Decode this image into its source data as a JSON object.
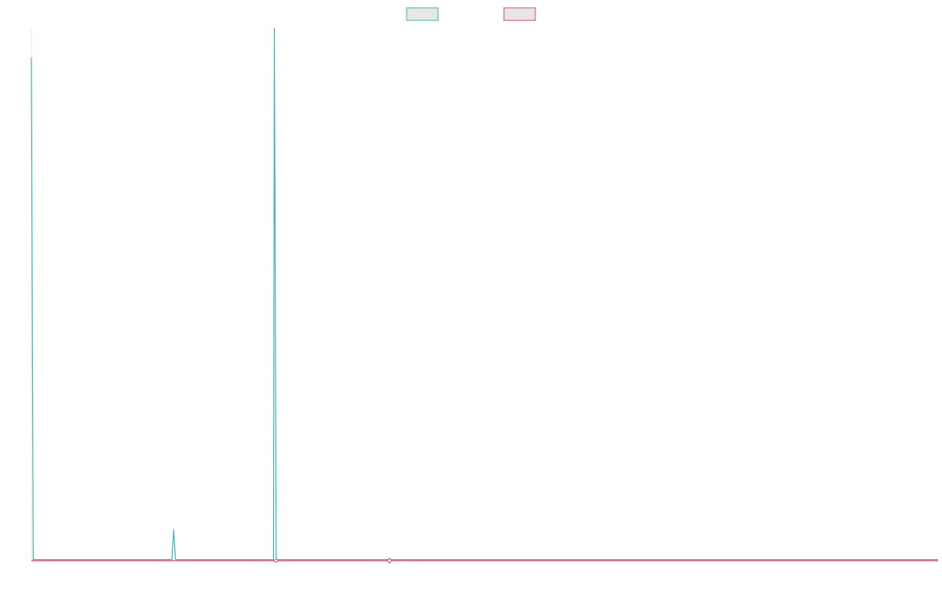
{
  "chart_data": {
    "type": "line",
    "title": "",
    "xlabel": "",
    "ylabel": "",
    "grid": false,
    "legend_position": "top-center",
    "x_range": [
      0,
      1000
    ],
    "ylim": [
      0,
      100
    ],
    "series": [
      {
        "color": "#3bb6b6",
        "values": [
          [
            0,
            94.5
          ],
          [
            2,
            0.2
          ],
          [
            155,
            0.2
          ],
          [
            157,
            5.8
          ],
          [
            159,
            0.2
          ],
          [
            267,
            0.2
          ],
          [
            268,
            100
          ],
          [
            270,
            0.2
          ],
          [
            1000,
            0.2
          ]
        ]
      },
      {
        "color": "#e0456a",
        "values": [
          [
            0,
            0
          ],
          [
            270,
            0
          ],
          [
            395,
            0
          ],
          [
            1000,
            0
          ]
        ],
        "markers": [
          {
            "x": 270,
            "y": 0,
            "marker": "circle"
          },
          {
            "x": 395,
            "y": 0,
            "marker": "diamond"
          }
        ]
      }
    ]
  }
}
